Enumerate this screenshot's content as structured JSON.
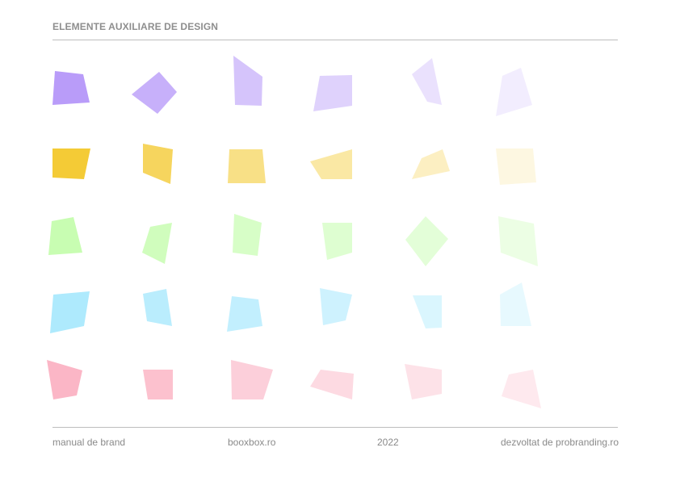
{
  "header": {
    "title": "ELEMENTE AUXILIARE DE DESIGN"
  },
  "palette": [
    {
      "name": "purple",
      "color": "#b99cf9",
      "opacities": [
        1,
        0.8,
        0.6,
        0.45,
        0.3,
        0.18
      ]
    },
    {
      "name": "yellow",
      "color": "#f4cb36",
      "opacities": [
        1,
        0.8,
        0.6,
        0.45,
        0.3,
        0.15
      ]
    },
    {
      "name": "green",
      "color": "#c8fdb2",
      "opacities": [
        1,
        0.85,
        0.72,
        0.6,
        0.5,
        0.35
      ]
    },
    {
      "name": "blue",
      "color": "#aeeafd",
      "opacities": [
        1,
        0.85,
        0.75,
        0.6,
        0.45,
        0.3
      ]
    },
    {
      "name": "pink",
      "color": "#fbb6c6",
      "opacities": [
        1,
        0.85,
        0.65,
        0.5,
        0.4,
        0.3
      ]
    }
  ],
  "footer": {
    "left": "manual de brand",
    "center_left": "booxbox.ro",
    "center_right": "2022",
    "right": "dezvoltat de probranding.ro"
  }
}
